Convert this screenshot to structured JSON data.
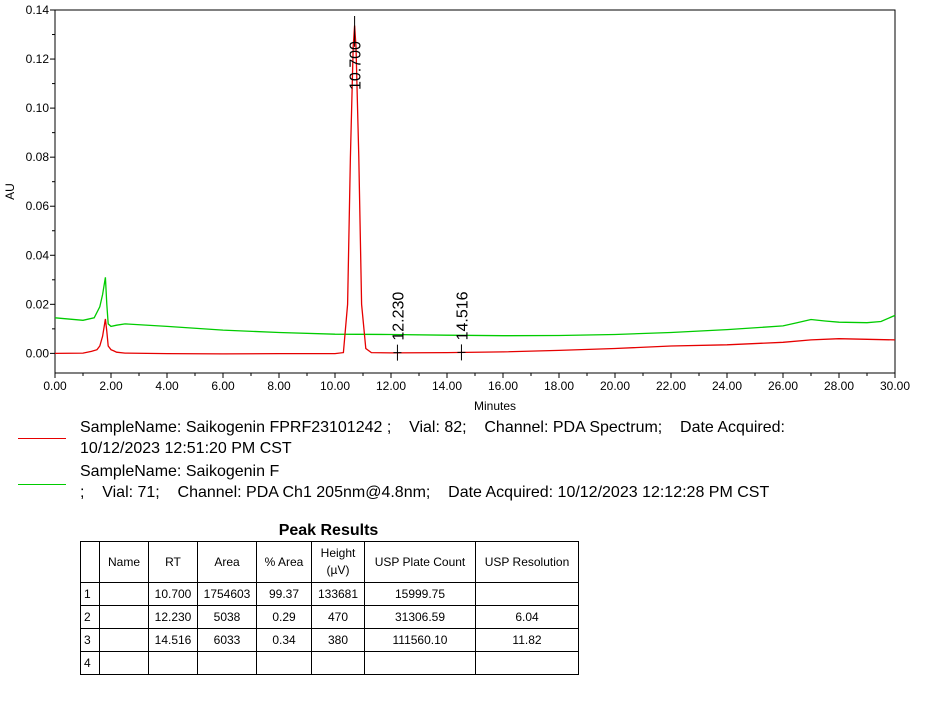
{
  "chart_data": {
    "type": "line",
    "xlabel": "Minutes",
    "ylabel": "AU",
    "xlim": [
      0,
      30
    ],
    "ylim": [
      -0.008,
      0.14
    ],
    "x_ticks": [
      "0.00",
      "2.00",
      "4.00",
      "6.00",
      "8.00",
      "10.00",
      "12.00",
      "14.00",
      "16.00",
      "18.00",
      "20.00",
      "22.00",
      "24.00",
      "26.00",
      "28.00",
      "30.00"
    ],
    "y_ticks": [
      "0.00",
      "0.02",
      "0.04",
      "0.06",
      "0.08",
      "0.10",
      "0.12",
      "0.14"
    ],
    "grid": false,
    "series": [
      {
        "color": "#e60000",
        "x": [
          0,
          1.0,
          1.3,
          1.5,
          1.6,
          1.7,
          1.8,
          1.85,
          1.9,
          2.0,
          2.1,
          2.2,
          2.5,
          4,
          6,
          8,
          10,
          10.3,
          10.45,
          10.55,
          10.65,
          10.7,
          10.75,
          10.85,
          10.95,
          11.1,
          11.3,
          12,
          14,
          16,
          18,
          20,
          22,
          24,
          26,
          27,
          28,
          30
        ],
        "y": [
          0.0,
          0.0001,
          0.0008,
          0.0015,
          0.003,
          0.007,
          0.014,
          0.009,
          0.003,
          0.0015,
          0.001,
          0.0005,
          0.0001,
          -0.0001,
          -0.0002,
          -0.0001,
          -0.0001,
          0.0003,
          0.02,
          0.08,
          0.125,
          0.1337,
          0.125,
          0.08,
          0.02,
          0.002,
          0.0003,
          0.0002,
          0.0003,
          0.0006,
          0.0012,
          0.002,
          0.003,
          0.0035,
          0.0045,
          0.0055,
          0.006,
          0.0055
        ]
      },
      {
        "color": "#00cc00",
        "x": [
          0,
          1.0,
          1.4,
          1.6,
          1.7,
          1.8,
          1.85,
          1.9,
          2.0,
          2.2,
          2.5,
          4,
          6,
          8,
          10,
          12,
          14,
          16,
          18,
          20,
          22,
          24,
          26,
          26.5,
          27,
          27.5,
          28,
          29,
          29.5,
          30
        ],
        "y": [
          0.0145,
          0.0135,
          0.0145,
          0.019,
          0.024,
          0.031,
          0.02,
          0.012,
          0.011,
          0.0115,
          0.012,
          0.011,
          0.0095,
          0.0085,
          0.0078,
          0.0077,
          0.0074,
          0.0072,
          0.0073,
          0.0077,
          0.0085,
          0.0097,
          0.0112,
          0.0125,
          0.0138,
          0.0132,
          0.0127,
          0.0125,
          0.013,
          0.0155
        ]
      }
    ],
    "annotations": [
      {
        "text": "10.700",
        "x": 10.7,
        "y": 0.1337
      },
      {
        "text": "12.230",
        "x": 12.23,
        "y": 0.0003
      },
      {
        "text": "14.516",
        "x": 14.516,
        "y": 0.0004
      }
    ]
  },
  "legend": [
    {
      "color": "#e60000",
      "line1": "SampleName: Saikogenin FPRF23101242 ;    Vial: 82;    Channel: PDA Spectrum;    Date Acquired:",
      "line2": "10/12/2023 12:51:20 PM CST"
    },
    {
      "color": "#00cc00",
      "line1": "SampleName: Saikogenin F",
      "line2": ";    Vial: 71;    Channel: PDA Ch1 205nm@4.8nm;    Date Acquired: 10/12/2023 12:12:28 PM CST"
    }
  ],
  "table": {
    "title": "Peak Results",
    "headers": [
      "",
      "Name",
      "RT",
      "Area",
      "% Area",
      "Height\n(µV)",
      "USP Plate Count",
      "USP Resolution"
    ],
    "rows": [
      [
        "1",
        "",
        "10.700",
        "1754603",
        "99.37",
        "133681",
        "15999.75",
        ""
      ],
      [
        "2",
        "",
        "12.230",
        "5038",
        "0.29",
        "470",
        "31306.59",
        "6.04"
      ],
      [
        "3",
        "",
        "14.516",
        "6033",
        "0.34",
        "380",
        "111560.10",
        "11.82"
      ],
      [
        "4",
        "",
        "",
        "",
        "",
        "",
        "",
        ""
      ]
    ]
  }
}
